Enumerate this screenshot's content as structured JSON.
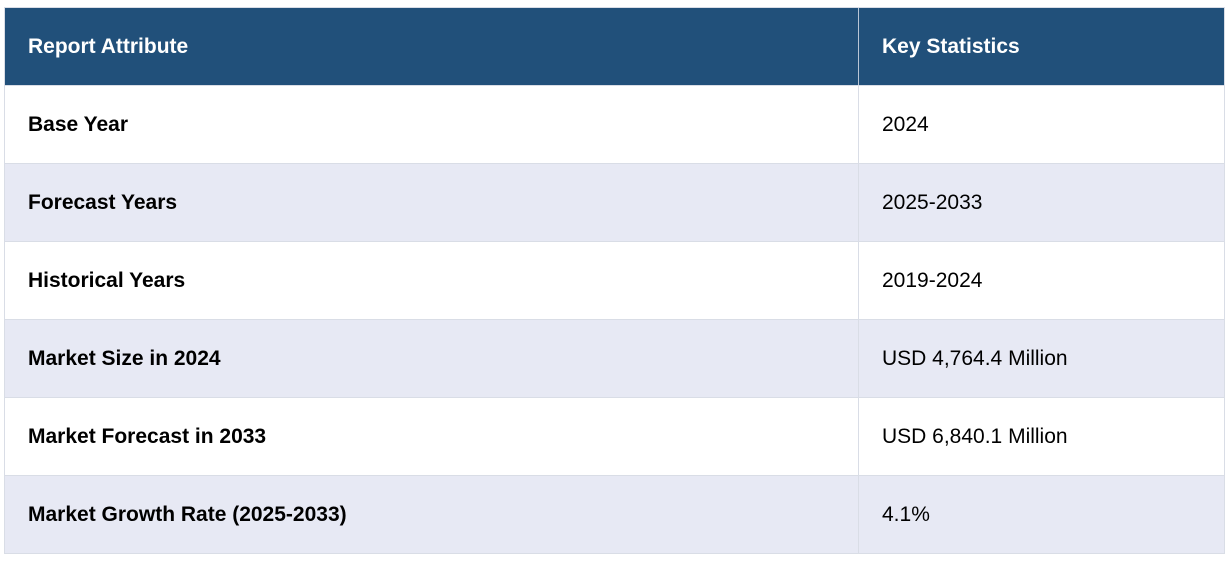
{
  "table": {
    "header": {
      "attribute": "Report Attribute",
      "statistics": "Key Statistics"
    },
    "rows": [
      {
        "attribute": "Base Year",
        "value": "2024"
      },
      {
        "attribute": "Forecast Years",
        "value": "2025-2033"
      },
      {
        "attribute": "Historical Years",
        "value": "2019-2024"
      },
      {
        "attribute": "Market Size in 2024",
        "value": "USD 4,764.4 Million"
      },
      {
        "attribute": "Market Forecast in 2033",
        "value": "USD 6,840.1 Million"
      },
      {
        "attribute": "Market Growth Rate (2025-2033)",
        "value": "4.1%"
      }
    ],
    "colors": {
      "header_background": "#21507a",
      "header_text": "#ffffff",
      "alternate_row": "#e7e9f4",
      "plain_row": "#ffffff",
      "border": "#d9dde6"
    }
  }
}
